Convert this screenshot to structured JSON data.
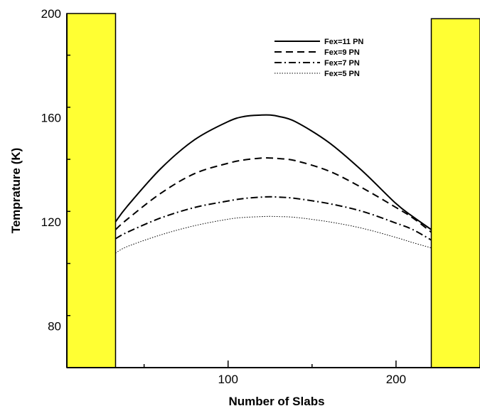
{
  "chart_data": {
    "type": "line",
    "xlabel": "Number of Slabs",
    "ylabel": "Temprature (K)",
    "xlim": [
      4,
      250
    ],
    "ylim": [
      64,
      200
    ],
    "x_ticks": [
      100,
      200
    ],
    "y_ticks": [
      80,
      120,
      160,
      200
    ],
    "grid": false,
    "legend_placement": "top-right",
    "shaded_regions": [
      {
        "x0": 4,
        "x1": 33,
        "y_top": 200,
        "color": "#ffff33"
      },
      {
        "x0": 221,
        "x1": 250,
        "y_top": 198,
        "color": "#ffff33"
      }
    ],
    "series": [
      {
        "name": "Fex=11 PN",
        "dash": "solid",
        "width": 2,
        "x": [
          33,
          40,
          60,
          80,
          100,
          110,
          120,
          125,
          130,
          140,
          160,
          180,
          200,
          210,
          221
        ],
        "y": [
          120,
          126,
          140.5,
          151.5,
          158.5,
          160.5,
          161,
          161,
          160.5,
          158.5,
          150.5,
          139.5,
          127,
          122,
          117
        ]
      },
      {
        "name": "Fex=9 PN",
        "dash": "dashed",
        "width": 2,
        "x": [
          33,
          40,
          60,
          80,
          100,
          110,
          120,
          125,
          130,
          140,
          160,
          180,
          200,
          210,
          221
        ],
        "y": [
          117,
          121,
          131,
          138.5,
          142.5,
          143.8,
          144.5,
          144.5,
          144.3,
          143.5,
          139.5,
          133,
          125.5,
          121.5,
          116
        ]
      },
      {
        "name": "Fex=7 PN",
        "dash": "dashdot",
        "width": 2,
        "x": [
          33,
          40,
          60,
          80,
          100,
          110,
          120,
          125,
          130,
          140,
          160,
          180,
          200,
          210,
          221
        ],
        "y": [
          113.5,
          116,
          121.5,
          125.5,
          128,
          129,
          129.5,
          129.6,
          129.5,
          129,
          127,
          124,
          119.5,
          117,
          113
        ]
      },
      {
        "name": "Fex=5 PN",
        "dash": "dotted",
        "width": 1,
        "x": [
          33,
          40,
          60,
          80,
          100,
          110,
          120,
          125,
          130,
          140,
          160,
          180,
          200,
          210,
          221
        ],
        "y": [
          108,
          110.5,
          115,
          118.5,
          121,
          121.7,
          122,
          122.1,
          122,
          121.7,
          120,
          117.5,
          114,
          112,
          110
        ]
      }
    ]
  }
}
